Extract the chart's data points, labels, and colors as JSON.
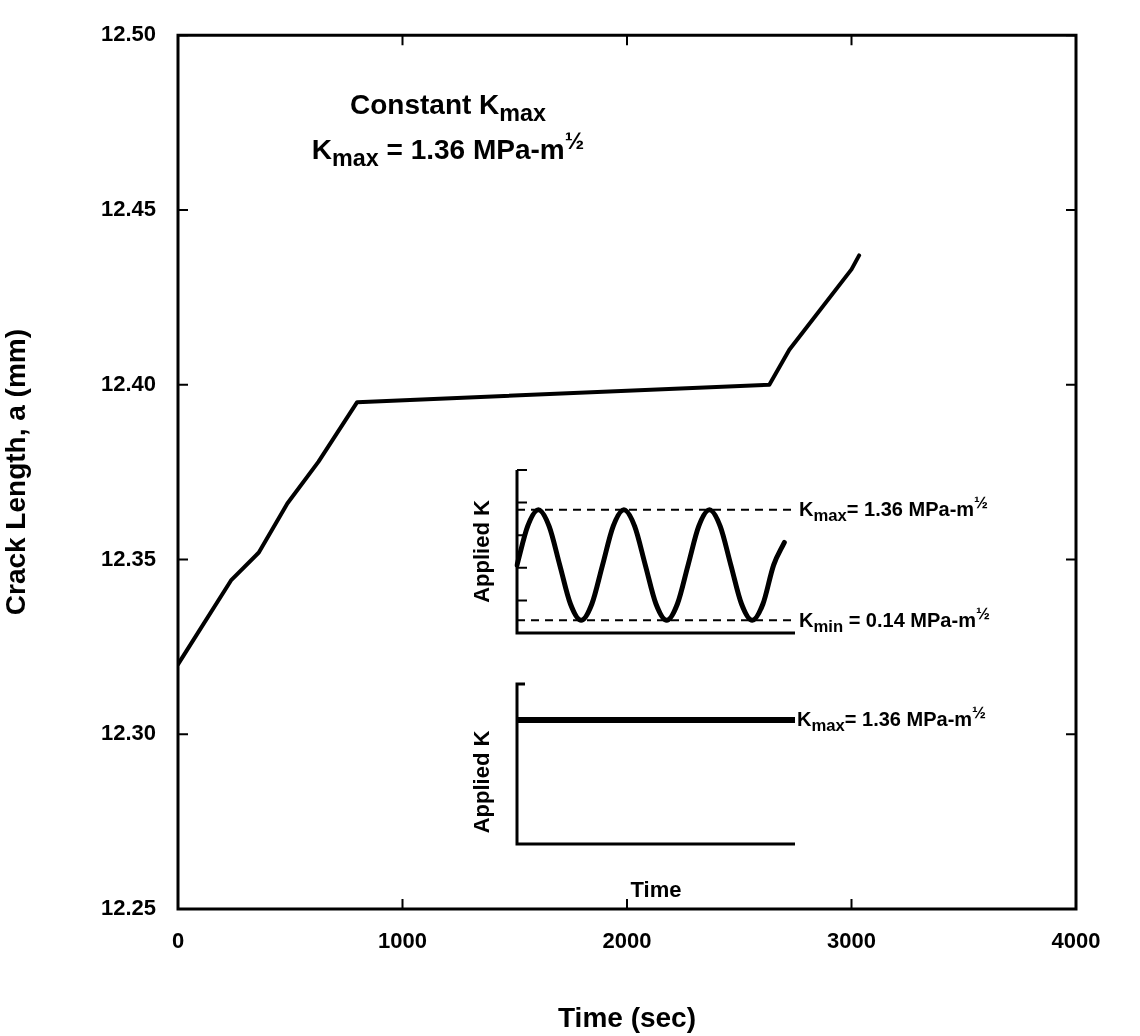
{
  "chart_data": [
    {
      "type": "line",
      "xlabel": "Time (sec)",
      "ylabel": "Crack Length, a (mm)",
      "annotations": [
        "Constant K$_{max}$",
        "K$_{max}$ = 1.36 MPa-m$^{½}$"
      ],
      "x": [
        0,
        236,
        360,
        487,
        626,
        798,
        2634,
        2723,
        3000,
        3034
      ],
      "series": [
        {
          "color": "#000000",
          "values": [
            12.32,
            12.344,
            12.352,
            12.366,
            12.378,
            12.395,
            12.4,
            12.41,
            12.433,
            12.437
          ]
        }
      ],
      "xlim": [
        0,
        4000
      ],
      "xticks": [
        0,
        1000,
        2000,
        3000,
        4000
      ],
      "ylim": [
        12.25,
        12.5
      ],
      "yticks": [
        {
          "value": 12.25,
          "label": "12.25"
        },
        {
          "value": 12.3,
          "label": "12.30"
        },
        {
          "value": 12.35,
          "label": "12.35"
        },
        {
          "value": 12.4,
          "label": "12.40"
        },
        {
          "value": 12.45,
          "label": "12.45"
        },
        {
          "value": 12.5,
          "label": "12.50"
        }
      ],
      "legend": false,
      "marker": "none",
      "line_style": "solid"
    },
    {
      "type": "line",
      "ylabel": "Applied K",
      "categories": [
        null,
        null,
        null,
        null,
        null,
        null,
        null,
        null,
        null,
        null,
        null,
        null,
        null,
        null,
        null,
        null,
        null,
        null,
        null,
        null,
        null,
        null,
        null,
        null,
        null,
        null,
        null
      ],
      "series": [
        {
          "color": "#000000",
          "values": [
            0.75,
            1.18,
            1.36,
            1.18,
            0.75,
            0.32,
            0.14,
            0.32,
            0.75,
            1.18,
            1.36,
            1.18,
            0.75,
            0.32,
            0.14,
            0.32,
            0.75,
            1.18,
            1.36,
            1.18,
            0.75,
            0.32,
            0.14,
            0.32,
            0.75,
            1.0,
            null
          ]
        }
      ],
      "ylim": [
        0,
        1.8
      ],
      "yticks": [
        {
          "value": 0.36,
          "label": null
        },
        {
          "value": 0.72,
          "label": null
        },
        {
          "value": 1.08,
          "label": null
        },
        {
          "value": 1.44,
          "label": null
        },
        {
          "value": 1.8,
          "label": null
        }
      ],
      "tick_labels": false,
      "ref_lines": [
        {
          "axis": "y",
          "value": 1.36,
          "label": "K$_{max}$= 1.36 MPa-m$^{½}$",
          "color": "#000000",
          "line_style": "dashed"
        },
        {
          "axis": "y",
          "value": 0.14,
          "label": "K$_{min}$ = 0.14 MPa-m$^{½}$",
          "color": "#000000",
          "line_style": "dashed"
        }
      ],
      "legend": false,
      "marker": "none",
      "line_style": "solid"
    },
    {
      "type": "other",
      "ylabel": "Applied K",
      "xlabel": "Time",
      "annotations": [
        "K$_{max}$= 1.36 MPa-m$^{½}$"
      ]
    }
  ]
}
